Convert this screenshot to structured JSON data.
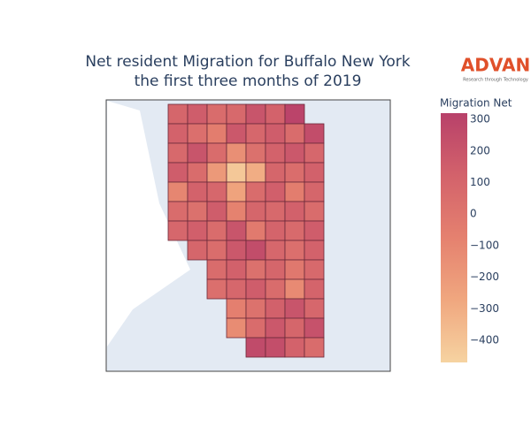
{
  "chart_data": {
    "type": "choropleth",
    "title": "Net resident Migration for Buffalo New York",
    "subtitle": "the first three months of 2019",
    "logo": "ADVAN",
    "logo_tagline": "Research through Technology",
    "colorbar_title": "Migration Net",
    "clim": [
      -470,
      320
    ],
    "cticks": [
      300,
      200,
      100,
      0,
      {
        "value": -100,
        "label": "−100"
      },
      {
        "value": -200,
        "label": "−200"
      },
      {
        "value": -300,
        "label": "−300"
      },
      {
        "value": -400,
        "label": "−400"
      }
    ],
    "colorscale": [
      "#f6d3a1",
      "#f0a77f",
      "#e5816f",
      "#d3626b",
      "#b8416a"
    ],
    "values": [
      100,
      150,
      60,
      80,
      200,
      120,
      300,
      120,
      40,
      -50,
      180,
      90,
      150,
      60,
      250,
      80,
      200,
      60,
      -150,
      30,
      120,
      180,
      90,
      150,
      60,
      -200,
      -420,
      -300,
      100,
      50,
      130,
      -100,
      120,
      90,
      -250,
      60,
      140,
      -50,
      100,
      60,
      30,
      150,
      -80,
      100,
      80,
      130,
      60,
      90,
      140,
      60,
      200,
      -30,
      110,
      70,
      150,
      100,
      50,
      180,
      250,
      90,
      40,
      120,
      60,
      130,
      30,
      100,
      -20,
      80,
      40,
      90,
      150,
      60,
      -120,
      110,
      -60,
      20,
      130,
      200,
      90,
      -130,
      60,
      180,
      100,
      220,
      260,
      240,
      120,
      60
    ]
  }
}
